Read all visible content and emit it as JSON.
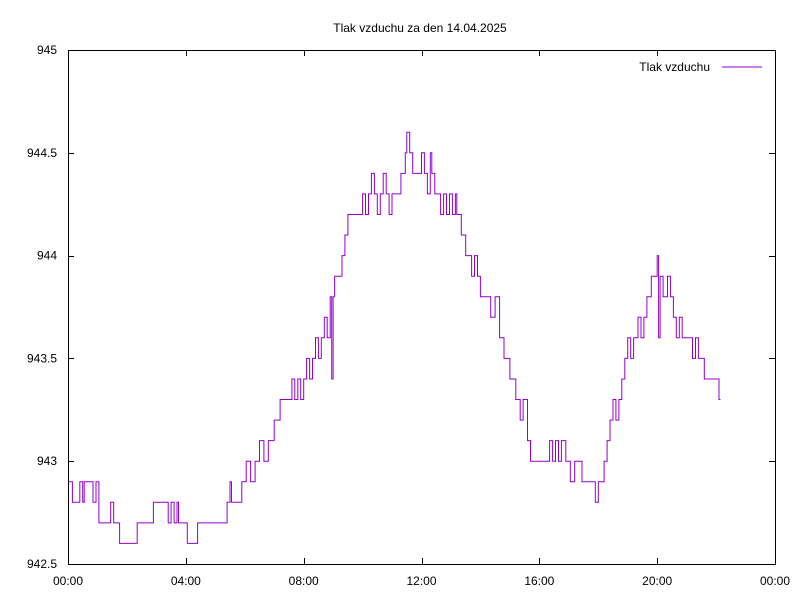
{
  "chart_data": {
    "type": "line",
    "title": "Tlak vzduchu za den 14.04.2025",
    "xlabel": "",
    "ylabel": "",
    "xlim": [
      0,
      24
    ],
    "ylim": [
      942.5,
      945
    ],
    "grid": false,
    "legend_position": "top-right",
    "x_ticks": [
      {
        "value": 0,
        "label": "00:00"
      },
      {
        "value": 4,
        "label": "04:00"
      },
      {
        "value": 8,
        "label": "08:00"
      },
      {
        "value": 12,
        "label": "12:00"
      },
      {
        "value": 16,
        "label": "16:00"
      },
      {
        "value": 20,
        "label": "20:00"
      },
      {
        "value": 24,
        "label": "00:00"
      }
    ],
    "y_ticks": [
      {
        "value": 942.5,
        "label": "942.5"
      },
      {
        "value": 943,
        "label": "943"
      },
      {
        "value": 943.5,
        "label": "943.5"
      },
      {
        "value": 944,
        "label": "944"
      },
      {
        "value": 944.5,
        "label": "944.5"
      },
      {
        "value": 945,
        "label": "945"
      }
    ],
    "series": [
      {
        "name": "Tlak vzduchu",
        "color": "#9400d3",
        "step": true,
        "points": [
          [
            0.0,
            942.9
          ],
          [
            0.15,
            942.8
          ],
          [
            0.4,
            942.9
          ],
          [
            0.5,
            942.8
          ],
          [
            0.55,
            942.9
          ],
          [
            0.85,
            942.8
          ],
          [
            0.95,
            942.9
          ],
          [
            1.05,
            942.7
          ],
          [
            1.3,
            942.7
          ],
          [
            1.45,
            942.8
          ],
          [
            1.55,
            942.7
          ],
          [
            1.75,
            942.6
          ],
          [
            2.2,
            942.6
          ],
          [
            2.35,
            942.7
          ],
          [
            2.8,
            942.7
          ],
          [
            2.9,
            942.8
          ],
          [
            3.35,
            942.8
          ],
          [
            3.4,
            942.7
          ],
          [
            3.5,
            942.8
          ],
          [
            3.6,
            942.7
          ],
          [
            3.7,
            942.8
          ],
          [
            3.75,
            942.7
          ],
          [
            3.95,
            942.7
          ],
          [
            4.05,
            942.6
          ],
          [
            4.3,
            942.6
          ],
          [
            4.4,
            942.7
          ],
          [
            4.55,
            942.7
          ],
          [
            5.3,
            942.7
          ],
          [
            5.4,
            942.8
          ],
          [
            5.5,
            942.9
          ],
          [
            5.55,
            942.8
          ],
          [
            5.9,
            942.9
          ],
          [
            6.05,
            943.0
          ],
          [
            6.2,
            942.9
          ],
          [
            6.35,
            943.0
          ],
          [
            6.5,
            943.1
          ],
          [
            6.65,
            943.0
          ],
          [
            6.8,
            943.1
          ],
          [
            7.0,
            943.2
          ],
          [
            7.2,
            943.3
          ],
          [
            7.5,
            943.3
          ],
          [
            7.6,
            943.4
          ],
          [
            7.7,
            943.3
          ],
          [
            7.8,
            943.4
          ],
          [
            7.9,
            943.3
          ],
          [
            8.0,
            943.4
          ],
          [
            8.1,
            943.5
          ],
          [
            8.2,
            943.4
          ],
          [
            8.3,
            943.5
          ],
          [
            8.4,
            943.6
          ],
          [
            8.5,
            943.5
          ],
          [
            8.6,
            943.6
          ],
          [
            8.7,
            943.7
          ],
          [
            8.8,
            943.6
          ],
          [
            8.9,
            943.8
          ],
          [
            8.95,
            943.4
          ],
          [
            9.0,
            943.8
          ],
          [
            9.05,
            943.9
          ],
          [
            9.2,
            943.9
          ],
          [
            9.3,
            944.0
          ],
          [
            9.4,
            944.1
          ],
          [
            9.5,
            944.2
          ],
          [
            9.9,
            944.2
          ],
          [
            10.0,
            944.3
          ],
          [
            10.1,
            944.2
          ],
          [
            10.2,
            944.3
          ],
          [
            10.3,
            944.4
          ],
          [
            10.4,
            944.3
          ],
          [
            10.5,
            944.2
          ],
          [
            10.6,
            944.3
          ],
          [
            10.7,
            944.4
          ],
          [
            10.8,
            944.3
          ],
          [
            10.9,
            944.2
          ],
          [
            11.0,
            944.3
          ],
          [
            11.15,
            944.3
          ],
          [
            11.3,
            944.4
          ],
          [
            11.45,
            944.5
          ],
          [
            11.5,
            944.6
          ],
          [
            11.6,
            944.5
          ],
          [
            11.7,
            944.4
          ],
          [
            11.95,
            944.4
          ],
          [
            12.0,
            944.5
          ],
          [
            12.1,
            944.4
          ],
          [
            12.2,
            944.3
          ],
          [
            12.3,
            944.5
          ],
          [
            12.35,
            944.4
          ],
          [
            12.45,
            944.3
          ],
          [
            12.55,
            944.3
          ],
          [
            12.65,
            944.2
          ],
          [
            12.75,
            944.3
          ],
          [
            12.85,
            944.2
          ],
          [
            12.95,
            944.3
          ],
          [
            13.05,
            944.2
          ],
          [
            13.15,
            944.3
          ],
          [
            13.2,
            944.2
          ],
          [
            13.35,
            944.1
          ],
          [
            13.5,
            944.0
          ],
          [
            13.7,
            943.9
          ],
          [
            13.8,
            944.0
          ],
          [
            13.9,
            943.9
          ],
          [
            14.0,
            943.8
          ],
          [
            14.2,
            943.8
          ],
          [
            14.35,
            943.7
          ],
          [
            14.5,
            943.8
          ],
          [
            14.65,
            943.6
          ],
          [
            14.8,
            943.5
          ],
          [
            15.0,
            943.4
          ],
          [
            15.2,
            943.3
          ],
          [
            15.35,
            943.2
          ],
          [
            15.45,
            943.3
          ],
          [
            15.6,
            943.1
          ],
          [
            15.7,
            943.0
          ],
          [
            16.25,
            943.0
          ],
          [
            16.35,
            943.1
          ],
          [
            16.45,
            943.0
          ],
          [
            16.55,
            943.1
          ],
          [
            16.65,
            943.0
          ],
          [
            16.75,
            943.1
          ],
          [
            16.9,
            943.0
          ],
          [
            17.05,
            942.9
          ],
          [
            17.2,
            943.0
          ],
          [
            17.45,
            942.9
          ],
          [
            17.8,
            942.9
          ],
          [
            17.9,
            942.8
          ],
          [
            18.0,
            942.9
          ],
          [
            18.2,
            943.0
          ],
          [
            18.3,
            943.1
          ],
          [
            18.4,
            943.2
          ],
          [
            18.5,
            943.3
          ],
          [
            18.6,
            943.2
          ],
          [
            18.7,
            943.3
          ],
          [
            18.8,
            943.4
          ],
          [
            18.9,
            943.5
          ],
          [
            19.0,
            943.6
          ],
          [
            19.1,
            943.5
          ],
          [
            19.2,
            943.6
          ],
          [
            19.35,
            943.7
          ],
          [
            19.45,
            943.6
          ],
          [
            19.55,
            943.7
          ],
          [
            19.65,
            943.8
          ],
          [
            19.8,
            943.9
          ],
          [
            20.0,
            944.0
          ],
          [
            20.05,
            943.6
          ],
          [
            20.1,
            943.9
          ],
          [
            20.2,
            943.8
          ],
          [
            20.35,
            943.9
          ],
          [
            20.45,
            943.8
          ],
          [
            20.55,
            943.7
          ],
          [
            20.65,
            943.6
          ],
          [
            20.75,
            943.7
          ],
          [
            20.85,
            943.6
          ],
          [
            21.1,
            943.6
          ],
          [
            21.2,
            943.5
          ],
          [
            21.3,
            943.6
          ],
          [
            21.4,
            943.5
          ],
          [
            21.6,
            943.4
          ],
          [
            22.0,
            943.4
          ],
          [
            22.1,
            943.3
          ]
        ]
      }
    ]
  }
}
